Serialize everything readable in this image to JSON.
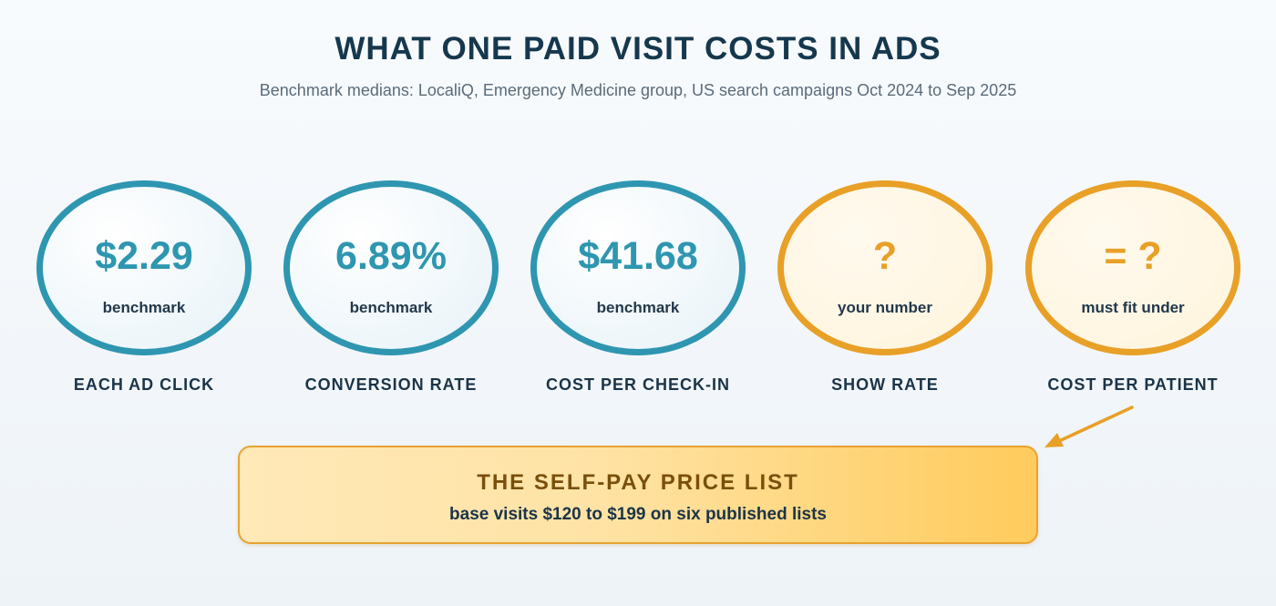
{
  "header": {
    "title": "WHAT ONE PAID VISIT COSTS IN ADS",
    "subtitle": "Benchmark medians: LocaliQ, Emergency Medicine group, US search campaigns Oct 2024 to Sep 2025"
  },
  "steps": [
    {
      "value": "$2.29",
      "sub": "benchmark",
      "label": "EACH AD CLICK",
      "kind": "benchmark"
    },
    {
      "value": "6.89%",
      "sub": "benchmark",
      "label": "CONVERSION RATE",
      "kind": "benchmark"
    },
    {
      "value": "$41.68",
      "sub": "benchmark",
      "label": "COST PER CHECK-IN",
      "kind": "benchmark"
    },
    {
      "value": "?",
      "sub": "your number",
      "label": "SHOW RATE",
      "kind": "unknown"
    },
    {
      "value": "= ?",
      "sub": "must fit under",
      "label": "COST PER PATIENT",
      "kind": "unknown"
    }
  ],
  "price_list": {
    "title": "THE SELF-PAY PRICE LIST",
    "subtitle": "base visits $120 to $199 on six published lists"
  },
  "colors": {
    "benchmark": "#2e96b0",
    "unknown": "#e8a027",
    "title": "#16384e"
  }
}
